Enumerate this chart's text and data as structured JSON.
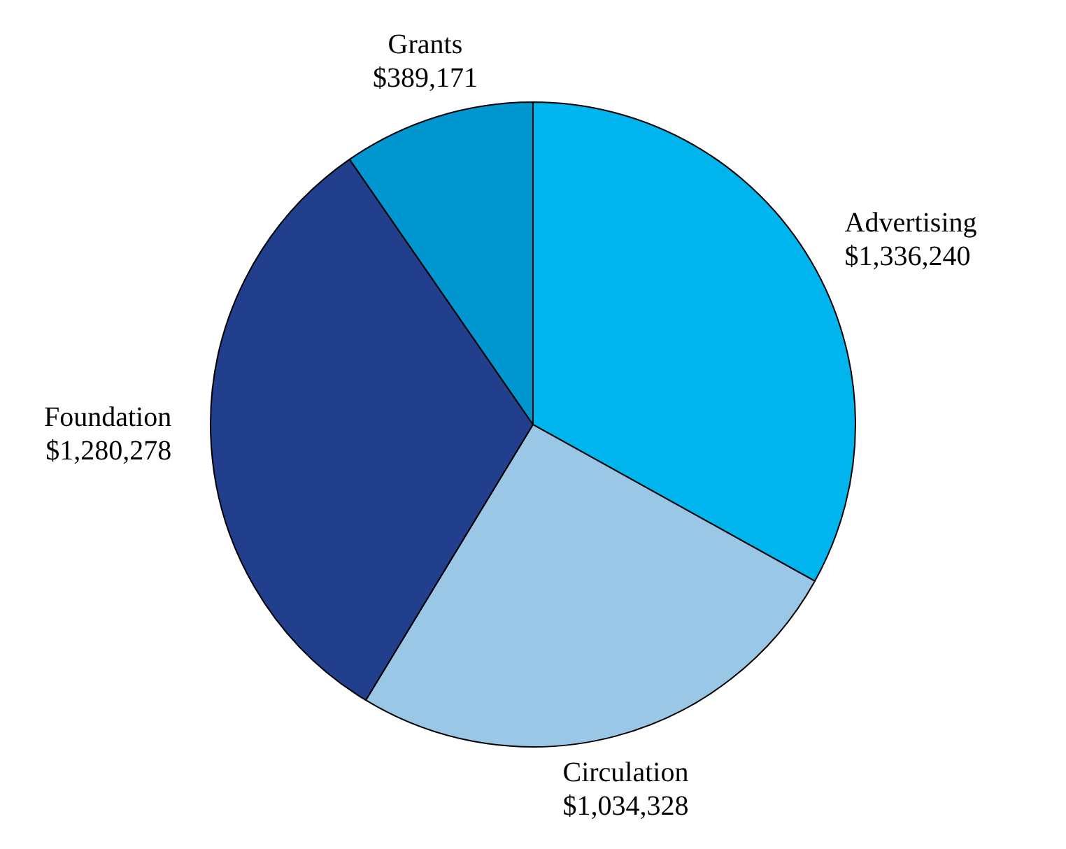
{
  "chart_data": {
    "type": "pie",
    "categories": [
      "Advertising",
      "Circulation",
      "Foundation",
      "Grants"
    ],
    "values": [
      1336240,
      1034328,
      1280278,
      389171
    ],
    "value_labels": [
      "$1,336,240",
      "$1,034,328",
      "$1,280,278",
      "$389,171"
    ],
    "colors": [
      "#00b5ee",
      "#9ac7e6",
      "#223f8e",
      "#0096d0"
    ],
    "legend": false
  }
}
